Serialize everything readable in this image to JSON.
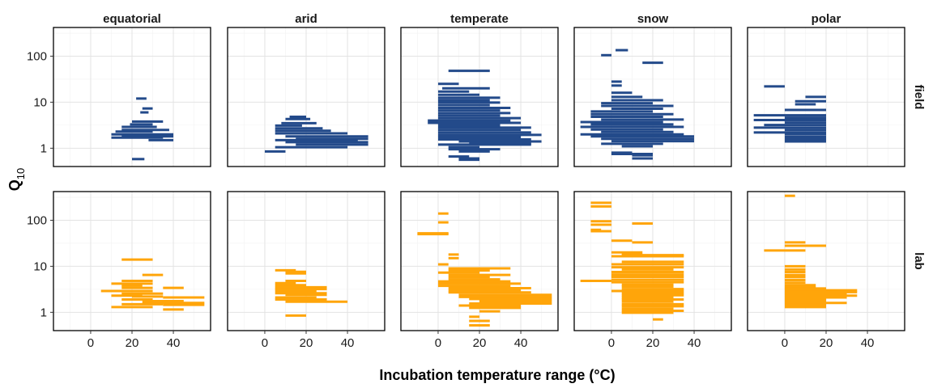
{
  "chart_data": {
    "type": "range",
    "xlabel": "Incubation temperature range (°C)",
    "ylabel": "Q",
    "ylabel_subscript": "10",
    "facet_columns": [
      "equatorial",
      "arid",
      "temperate",
      "snow",
      "polar"
    ],
    "facet_rows": [
      "field",
      "lab"
    ],
    "xlim": [
      -18,
      58
    ],
    "ylim": [
      0.4,
      420
    ],
    "y_scale": "log10",
    "x_ticks": [
      0,
      20,
      40
    ],
    "x_tick_labels": [
      "0",
      "20",
      "40"
    ],
    "y_ticks": [
      1,
      10,
      100
    ],
    "y_tick_labels": [
      "1",
      "10",
      "100"
    ],
    "colors": {
      "field": "#234A8A",
      "lab": "#FFA50A"
    },
    "grid": true,
    "series": [
      {
        "name": "field",
        "column": "equatorial",
        "segments": [
          [
            22,
            27,
            12
          ],
          [
            25,
            30,
            7.3
          ],
          [
            24,
            28,
            6
          ],
          [
            20,
            35,
            3.8
          ],
          [
            19,
            30,
            3.3
          ],
          [
            15,
            32,
            2.9
          ],
          [
            15,
            38,
            2.5
          ],
          [
            12,
            30,
            2.3
          ],
          [
            10,
            40,
            2.0
          ],
          [
            15,
            40,
            1.8
          ],
          [
            10,
            35,
            1.7
          ],
          [
            28,
            40,
            1.5
          ],
          [
            20,
            26,
            0.58
          ]
        ]
      },
      {
        "name": "field",
        "column": "arid",
        "segments": [
          [
            12,
            20,
            4.8
          ],
          [
            10,
            22,
            4.3
          ],
          [
            8,
            25,
            3.5
          ],
          [
            5,
            18,
            3.1
          ],
          [
            5,
            28,
            2.7
          ],
          [
            5,
            32,
            2.4
          ],
          [
            5,
            40,
            2.1
          ],
          [
            10,
            50,
            1.8
          ],
          [
            15,
            50,
            1.6
          ],
          [
            5,
            45,
            1.5
          ],
          [
            10,
            50,
            1.35
          ],
          [
            15,
            50,
            1.2
          ],
          [
            5,
            40,
            1.05
          ],
          [
            0,
            10,
            0.85
          ]
        ]
      },
      {
        "name": "field",
        "column": "temperate",
        "segments": [
          [
            5,
            25,
            48
          ],
          [
            0,
            10,
            25
          ],
          [
            2,
            25,
            20
          ],
          [
            0,
            15,
            17
          ],
          [
            0,
            20,
            14.5
          ],
          [
            0,
            30,
            12.5
          ],
          [
            0,
            25,
            11
          ],
          [
            0,
            30,
            9.8
          ],
          [
            0,
            25,
            8.6
          ],
          [
            0,
            35,
            7.5
          ],
          [
            0,
            30,
            6.6
          ],
          [
            0,
            35,
            5.8
          ],
          [
            0,
            30,
            5.1
          ],
          [
            0,
            40,
            4.5
          ],
          [
            -5,
            35,
            4.0
          ],
          [
            -5,
            40,
            3.55
          ],
          [
            0,
            30,
            3.15
          ],
          [
            0,
            45,
            2.8
          ],
          [
            0,
            40,
            2.5
          ],
          [
            0,
            45,
            2.2
          ],
          [
            0,
            50,
            1.95
          ],
          [
            0,
            40,
            1.75
          ],
          [
            0,
            45,
            1.55
          ],
          [
            10,
            50,
            1.4
          ],
          [
            15,
            45,
            1.28
          ],
          [
            0,
            45,
            1.2
          ],
          [
            5,
            20,
            1.05
          ],
          [
            5,
            30,
            0.95
          ],
          [
            10,
            25,
            0.85
          ],
          [
            5,
            15,
            0.66
          ],
          [
            10,
            20,
            0.6
          ],
          [
            10,
            20,
            0.56
          ]
        ]
      },
      {
        "name": "field",
        "column": "snow",
        "segments": [
          [
            -5,
            0,
            105
          ],
          [
            2,
            8,
            135
          ],
          [
            15,
            25,
            72
          ],
          [
            0,
            5,
            28
          ],
          [
            0,
            5,
            23
          ],
          [
            0,
            10,
            16
          ],
          [
            0,
            15,
            13
          ],
          [
            0,
            25,
            11
          ],
          [
            -5,
            20,
            9.5
          ],
          [
            -5,
            30,
            8.3
          ],
          [
            0,
            25,
            7.2
          ],
          [
            -10,
            20,
            6.3
          ],
          [
            -10,
            30,
            5.5
          ],
          [
            -10,
            25,
            4.8
          ],
          [
            -5,
            35,
            4.2
          ],
          [
            -15,
            25,
            3.7
          ],
          [
            -10,
            30,
            3.3
          ],
          [
            -15,
            35,
            2.9
          ],
          [
            -10,
            25,
            2.55
          ],
          [
            -5,
            30,
            2.25
          ],
          [
            -15,
            35,
            2.0
          ],
          [
            -10,
            40,
            1.8
          ],
          [
            -5,
            40,
            1.6
          ],
          [
            0,
            40,
            1.42
          ],
          [
            -5,
            25,
            1.25
          ],
          [
            5,
            20,
            1.1
          ],
          [
            0,
            10,
            0.8
          ],
          [
            0,
            20,
            0.75
          ],
          [
            10,
            20,
            0.7
          ],
          [
            10,
            20,
            0.6
          ]
        ]
      },
      {
        "name": "field",
        "column": "polar",
        "segments": [
          [
            -10,
            0,
            22
          ],
          [
            10,
            20,
            13
          ],
          [
            5,
            20,
            10.5
          ],
          [
            5,
            15,
            9
          ],
          [
            0,
            20,
            6.8
          ],
          [
            -15,
            20,
            5.2
          ],
          [
            0,
            20,
            4.6
          ],
          [
            -15,
            20,
            4.1
          ],
          [
            0,
            20,
            3.6
          ],
          [
            -10,
            20,
            3.2
          ],
          [
            -15,
            20,
            2.8
          ],
          [
            0,
            20,
            2.5
          ],
          [
            -15,
            20,
            2.2
          ],
          [
            0,
            20,
            2.0
          ],
          [
            0,
            20,
            1.75
          ],
          [
            0,
            20,
            1.55
          ],
          [
            0,
            20,
            1.4
          ]
        ]
      },
      {
        "name": "lab",
        "column": "equatorial",
        "segments": [
          [
            15,
            30,
            14
          ],
          [
            25,
            35,
            6.5
          ],
          [
            15,
            30,
            4.8
          ],
          [
            10,
            30,
            4.2
          ],
          [
            15,
            25,
            3.8
          ],
          [
            15,
            30,
            3.4
          ],
          [
            35,
            45,
            3.4
          ],
          [
            5,
            30,
            2.9
          ],
          [
            15,
            35,
            2.55
          ],
          [
            10,
            25,
            2.3
          ],
          [
            20,
            35,
            2.2
          ],
          [
            35,
            55,
            2.1
          ],
          [
            15,
            30,
            1.9
          ],
          [
            25,
            45,
            1.75
          ],
          [
            25,
            55,
            1.6
          ],
          [
            15,
            35,
            1.5
          ],
          [
            35,
            55,
            1.45
          ],
          [
            10,
            30,
            1.3
          ],
          [
            35,
            45,
            1.15
          ]
        ]
      },
      {
        "name": "lab",
        "column": "arid",
        "segments": [
          [
            5,
            15,
            8.2
          ],
          [
            10,
            20,
            7.6
          ],
          [
            10,
            20,
            7.0
          ],
          [
            10,
            20,
            4.8
          ],
          [
            5,
            15,
            4.3
          ],
          [
            5,
            20,
            3.9
          ],
          [
            5,
            30,
            3.5
          ],
          [
            5,
            30,
            3.2
          ],
          [
            5,
            25,
            2.9
          ],
          [
            5,
            30,
            2.6
          ],
          [
            10,
            30,
            2.4
          ],
          [
            5,
            25,
            2.1
          ],
          [
            5,
            30,
            1.9
          ],
          [
            10,
            40,
            1.7
          ],
          [
            10,
            20,
            0.85
          ]
        ]
      },
      {
        "name": "lab",
        "column": "temperate",
        "segments": [
          [
            0,
            5,
            140
          ],
          [
            0,
            5,
            90
          ],
          [
            -10,
            5,
            52
          ],
          [
            -10,
            5,
            50
          ],
          [
            5,
            10,
            18
          ],
          [
            5,
            10,
            15
          ],
          [
            0,
            5,
            11
          ],
          [
            5,
            35,
            9
          ],
          [
            5,
            25,
            8.1
          ],
          [
            0,
            20,
            7.3
          ],
          [
            5,
            35,
            6.5
          ],
          [
            5,
            25,
            5.8
          ],
          [
            5,
            30,
            5.2
          ],
          [
            0,
            35,
            4.7
          ],
          [
            0,
            40,
            4.2
          ],
          [
            0,
            35,
            3.75
          ],
          [
            5,
            45,
            3.35
          ],
          [
            5,
            40,
            3.0
          ],
          [
            5,
            45,
            2.7
          ],
          [
            10,
            55,
            2.4
          ],
          [
            10,
            55,
            2.15
          ],
          [
            15,
            55,
            1.95
          ],
          [
            20,
            55,
            1.75
          ],
          [
            15,
            55,
            1.55
          ],
          [
            10,
            40,
            1.4
          ],
          [
            15,
            40,
            1.25
          ],
          [
            20,
            30,
            1.05
          ],
          [
            15,
            20,
            0.8
          ],
          [
            15,
            25,
            0.65
          ],
          [
            15,
            25,
            0.52
          ]
        ]
      },
      {
        "name": "lab",
        "column": "snow",
        "segments": [
          [
            -10,
            0,
            240
          ],
          [
            -10,
            0,
            200
          ],
          [
            -10,
            0,
            95
          ],
          [
            -10,
            0,
            80
          ],
          [
            -10,
            -5,
            62
          ],
          [
            -10,
            0,
            58
          ],
          [
            10,
            20,
            85
          ],
          [
            0,
            10,
            36
          ],
          [
            10,
            20,
            33
          ],
          [
            0,
            15,
            20
          ],
          [
            5,
            15,
            18
          ],
          [
            5,
            35,
            17.5
          ],
          [
            0,
            35,
            16.5
          ],
          [
            5,
            35,
            12.5
          ],
          [
            0,
            35,
            11
          ],
          [
            0,
            35,
            9.5
          ],
          [
            5,
            30,
            8.5
          ],
          [
            0,
            35,
            7.5
          ],
          [
            0,
            35,
            6.6
          ],
          [
            0,
            35,
            5.9
          ],
          [
            -15,
            0,
            4.8
          ],
          [
            0,
            35,
            5.1
          ],
          [
            0,
            35,
            4.5
          ],
          [
            5,
            30,
            4.0
          ],
          [
            5,
            30,
            3.6
          ],
          [
            5,
            35,
            3.2
          ],
          [
            0,
            35,
            2.9
          ],
          [
            5,
            35,
            2.6
          ],
          [
            5,
            35,
            2.35
          ],
          [
            5,
            30,
            2.1
          ],
          [
            5,
            35,
            1.9
          ],
          [
            5,
            30,
            1.7
          ],
          [
            5,
            35,
            1.5
          ],
          [
            5,
            35,
            1.35
          ],
          [
            5,
            30,
            1.2
          ],
          [
            5,
            35,
            1.08
          ],
          [
            5,
            30,
            0.98
          ],
          [
            20,
            25,
            0.7
          ]
        ]
      },
      {
        "name": "lab",
        "column": "polar",
        "segments": [
          [
            0,
            5,
            340
          ],
          [
            0,
            10,
            33
          ],
          [
            0,
            20,
            28
          ],
          [
            -10,
            10,
            22
          ],
          [
            0,
            10,
            10
          ],
          [
            0,
            10,
            8.5
          ],
          [
            0,
            10,
            7.5
          ],
          [
            0,
            10,
            6.5
          ],
          [
            0,
            10,
            5.8
          ],
          [
            0,
            10,
            5.0
          ],
          [
            0,
            10,
            4.4
          ],
          [
            0,
            15,
            3.9
          ],
          [
            0,
            15,
            3.5
          ],
          [
            0,
            20,
            3.3
          ],
          [
            0,
            35,
            3.0
          ],
          [
            0,
            35,
            2.75
          ],
          [
            0,
            30,
            2.55
          ],
          [
            0,
            35,
            2.3
          ],
          [
            0,
            30,
            2.1
          ],
          [
            0,
            20,
            1.9
          ],
          [
            0,
            20,
            1.75
          ],
          [
            0,
            30,
            1.6
          ],
          [
            0,
            20,
            1.45
          ],
          [
            0,
            20,
            1.3
          ]
        ]
      }
    ]
  }
}
